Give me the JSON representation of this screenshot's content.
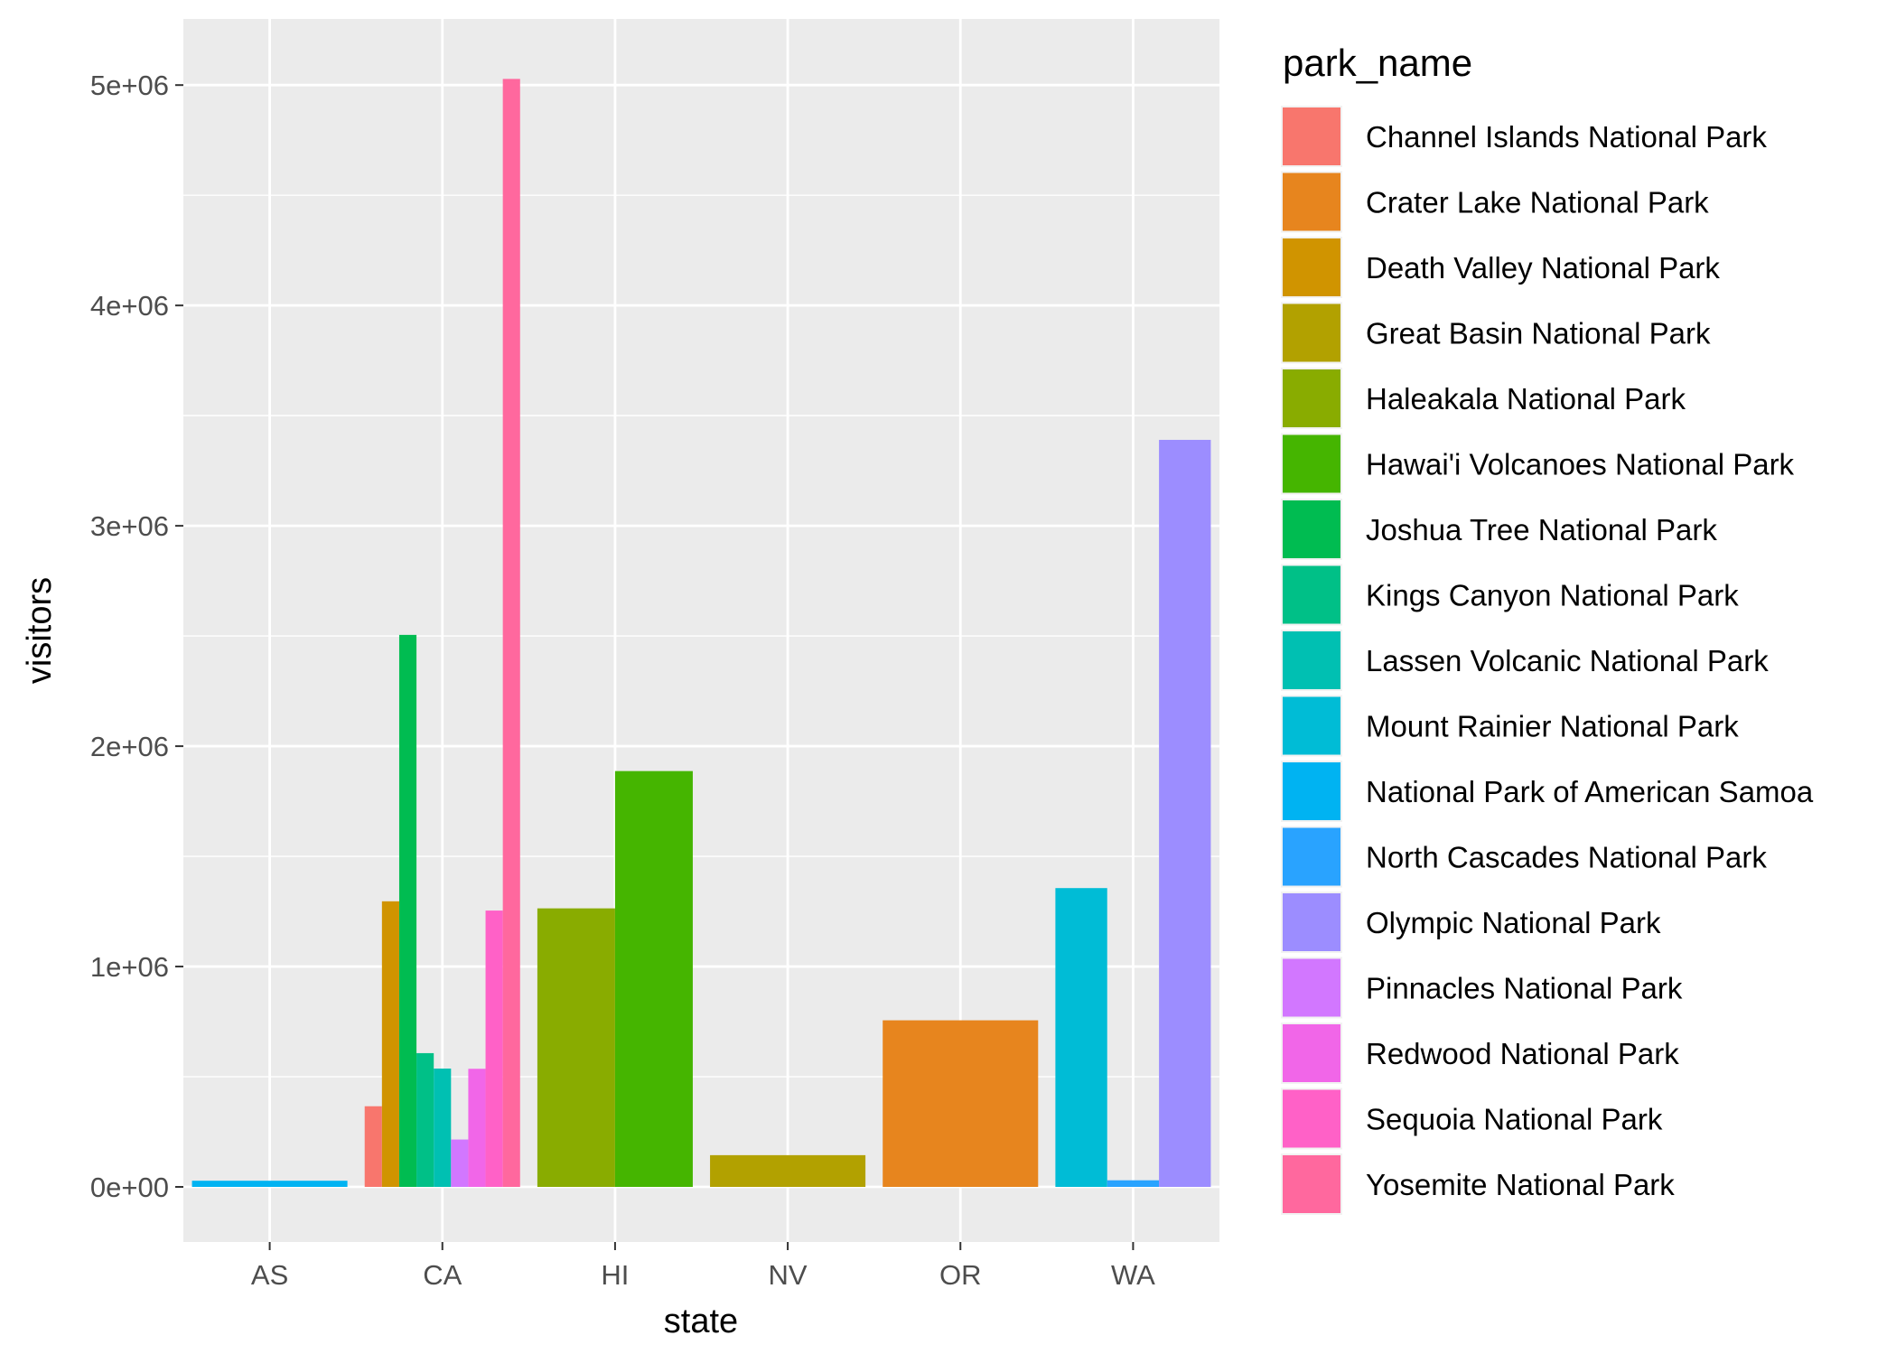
{
  "chart_data": {
    "type": "bar",
    "position": "dodge",
    "xlabel": "state",
    "ylabel": "visitors",
    "categories": [
      "AS",
      "CA",
      "HI",
      "NV",
      "OR",
      "WA"
    ],
    "ylim": [
      -250000,
      5300000
    ],
    "y_ticks": [
      0,
      1000000,
      2000000,
      3000000,
      4000000,
      5000000
    ],
    "y_tick_labels": [
      "0e+00",
      "1e+06",
      "2e+06",
      "3e+06",
      "4e+06",
      "5e+06"
    ],
    "grid": true,
    "legend": {
      "title": "park_name",
      "placement": "right"
    },
    "series": [
      {
        "name": "Channel Islands National Park",
        "color": "#F8766D",
        "state": "CA",
        "value": 366000
      },
      {
        "name": "Crater Lake National Park",
        "color": "#E7851E",
        "state": "OR",
        "value": 756000
      },
      {
        "name": "Death Valley National Park",
        "color": "#D09400",
        "state": "CA",
        "value": 1296000
      },
      {
        "name": "Great Basin National Park",
        "color": "#B2A100",
        "state": "NV",
        "value": 144000
      },
      {
        "name": "Haleakala National Park",
        "color": "#89AC00",
        "state": "HI",
        "value": 1264000
      },
      {
        "name": "Hawai'i Volcanoes National Park",
        "color": "#45B500",
        "state": "HI",
        "value": 1887000
      },
      {
        "name": "Joshua Tree National Park",
        "color": "#00BC51",
        "state": "CA",
        "value": 2505000
      },
      {
        "name": "Kings Canyon National Park",
        "color": "#00C087",
        "state": "CA",
        "value": 607000
      },
      {
        "name": "Lassen Volcanic National Park",
        "color": "#00C0B2",
        "state": "CA",
        "value": 537000
      },
      {
        "name": "Mount Rainier National Park",
        "color": "#00BCD6",
        "state": "WA",
        "value": 1356000
      },
      {
        "name": "National Park of American Samoa",
        "color": "#00B3F2",
        "state": "AS",
        "value": 28000
      },
      {
        "name": "North Cascades National Park",
        "color": "#29A3FF",
        "state": "WA",
        "value": 30000
      },
      {
        "name": "Olympic National Park",
        "color": "#9C8DFF",
        "state": "WA",
        "value": 3390000
      },
      {
        "name": "Pinnacles National Park",
        "color": "#D277FF",
        "state": "CA",
        "value": 215000
      },
      {
        "name": "Redwood National Park",
        "color": "#F166E8",
        "state": "CA",
        "value": 536000
      },
      {
        "name": "Sequoia National Park",
        "color": "#FF61C7",
        "state": "CA",
        "value": 1254000
      },
      {
        "name": "Yosemite National Park",
        "color": "#FF689E",
        "state": "CA",
        "value": 5028000
      }
    ]
  }
}
